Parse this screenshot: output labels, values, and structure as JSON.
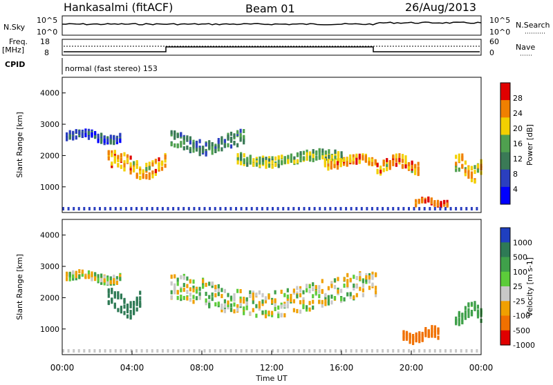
{
  "header": {
    "station": "Hankasalmi (fitACF)",
    "beam": "Beam 01",
    "date": "26/Aug/2013"
  },
  "top_panels": {
    "nsky_label": "N.Sky",
    "nsearch_label": "N.Search",
    "nsky_ticks": [
      "10^5",
      "10^0"
    ],
    "nsearch_ticks": [
      "10^5",
      "10^0"
    ],
    "freq_label_line1": "Freq.",
    "freq_label_line2": "[MHz]",
    "freq_ticks": [
      "18",
      "8"
    ],
    "nave_label": "Nave",
    "nave_ticks": [
      "60",
      "0"
    ],
    "cpid_label": "CPID",
    "cpid_text": "normal (fast stereo) 153"
  },
  "chart_data": [
    {
      "type": "heatmap",
      "panel": "power",
      "ylabel": "Slant Range [km]",
      "xlabel": "",
      "xlim": [
        "00:00",
        "24:00"
      ],
      "ylim": [
        180,
        4500
      ],
      "yticks": [
        1000,
        2000,
        3000,
        4000
      ],
      "colorbar": {
        "label": "Power [dB]",
        "ticks": [
          "28",
          "24",
          "20",
          "16",
          "12",
          "8",
          "4"
        ],
        "range": [
          0,
          30
        ],
        "colors": [
          "#0000ff",
          "#2b3fbf",
          "#3a7a56",
          "#4fa04f",
          "#f2d000",
          "#f08000",
          "#e00000"
        ]
      },
      "bands": [
        {
          "t_start": 0.2,
          "t_end": 3.4,
          "r_center": 2600,
          "r_width": 250,
          "level": 8
        },
        {
          "t_start": 2.6,
          "t_end": 6.0,
          "r_center": 1700,
          "r_width": 500,
          "level": 22
        },
        {
          "t_start": 6.2,
          "t_end": 10.5,
          "r_center": 2400,
          "r_width": 450,
          "level": 11
        },
        {
          "t_start": 10.0,
          "t_end": 16.0,
          "r_center": 1900,
          "r_width": 300,
          "level": 16
        },
        {
          "t_start": 15.0,
          "t_end": 18.0,
          "r_center": 1800,
          "r_width": 250,
          "level": 22
        },
        {
          "t_start": 18.0,
          "t_end": 20.5,
          "r_center": 1700,
          "r_width": 350,
          "level": 22
        },
        {
          "t_start": 20.2,
          "t_end": 22.0,
          "r_center": 500,
          "r_width": 150,
          "level": 26
        },
        {
          "t_start": 22.5,
          "t_end": 24.0,
          "r_center": 1600,
          "r_width": 500,
          "level": 20
        }
      ]
    },
    {
      "type": "heatmap",
      "panel": "velocity",
      "ylabel": "Slant Range [km]",
      "xlabel": "Time UT",
      "xlim": [
        "00:00",
        "24:00"
      ],
      "ylim": [
        180,
        4500
      ],
      "yticks": [
        1000,
        2000,
        3000,
        4000
      ],
      "xticks": [
        "00:00",
        "04:00",
        "08:00",
        "12:00",
        "16:00",
        "20:00",
        "00:00"
      ],
      "colorbar": {
        "label": "Velocity [m s-1]",
        "ticks": [
          "1000",
          "500",
          "100",
          "25",
          "-25",
          "-100",
          "-500",
          "-1000"
        ],
        "colors": [
          "#1f3fbf",
          "#2e7a55",
          "#3fa04a",
          "#5ccc3a",
          "#c8c8c8",
          "#f0a000",
          "#f07000",
          "#e00000"
        ]
      },
      "bands": [
        {
          "t_start": 0.2,
          "t_end": 3.4,
          "r_center": 2650,
          "r_width": 250,
          "level": 0
        },
        {
          "t_start": 2.6,
          "t_end": 4.5,
          "r_center": 1800,
          "r_width": 600,
          "level": 500
        },
        {
          "t_start": 6.2,
          "t_end": 18.0,
          "r_center": 2100,
          "r_width": 800,
          "level": 0
        },
        {
          "t_start": 19.5,
          "t_end": 21.5,
          "r_center": 800,
          "r_width": 300,
          "level": -300
        },
        {
          "t_start": 22.5,
          "t_end": 24.0,
          "r_center": 1500,
          "r_width": 400,
          "level": 150
        }
      ]
    }
  ]
}
